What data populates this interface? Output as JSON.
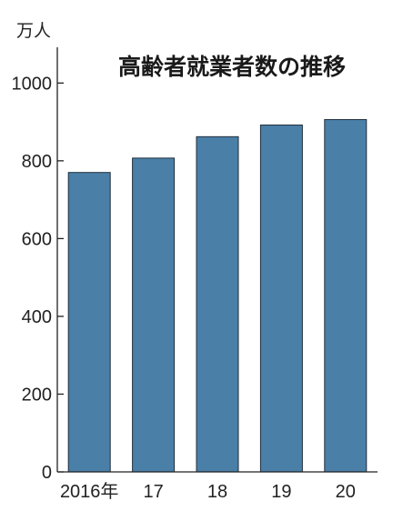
{
  "chart_data": {
    "type": "bar",
    "title": "高齢者就業者数の推移",
    "ylabel": "万人",
    "xlabel": "",
    "categories": [
      "2016年",
      "17",
      "18",
      "19",
      "20"
    ],
    "values": [
      770,
      807,
      862,
      892,
      906
    ],
    "ylim": [
      0,
      1120
    ],
    "yticks": [
      0,
      200,
      400,
      600,
      800,
      1000
    ],
    "grid": false,
    "bar_color": "#4a7fa7",
    "bar_edge_color": "#1f2f3d"
  }
}
